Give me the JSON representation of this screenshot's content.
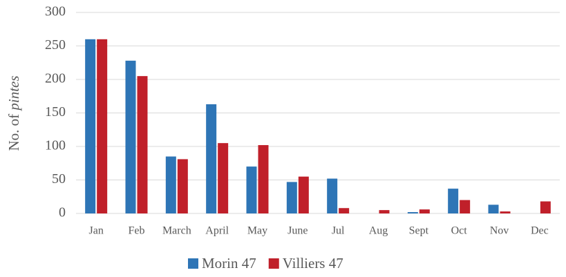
{
  "chart_data": {
    "type": "bar",
    "ylabel": "No. of pintes",
    "categories": [
      "Jan",
      "Feb",
      "March",
      "April",
      "May",
      "June",
      "Jul",
      "Aug",
      "Sept",
      "Oct",
      "Nov",
      "Dec"
    ],
    "series": [
      {
        "name": "Morin 47",
        "color": "#2e75b6",
        "values": [
          260,
          228,
          85,
          163,
          70,
          47,
          52,
          0,
          2,
          37,
          13,
          0
        ]
      },
      {
        "name": "Villiers 47",
        "color": "#c0202a",
        "values": [
          260,
          205,
          81,
          105,
          102,
          55,
          8,
          5,
          6,
          20,
          3,
          18
        ]
      }
    ],
    "ylim": [
      0,
      300
    ],
    "yticks": [
      0,
      50,
      100,
      150,
      200,
      250,
      300
    ],
    "grid": true,
    "legend": "bottom"
  }
}
